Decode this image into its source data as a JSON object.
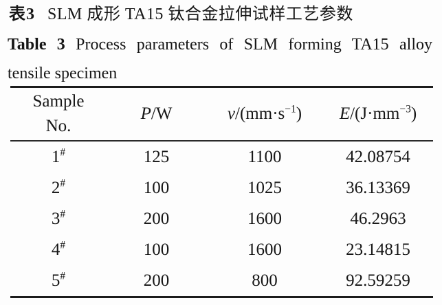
{
  "caption_zh": {
    "label": "表3",
    "text": "SLM 成形 TA15 钛合金拉伸试样工艺参数"
  },
  "caption_en": {
    "label": "Table 3",
    "line1": "Process parameters of SLM forming TA15 alloy",
    "line2": "tensile specimen"
  },
  "table": {
    "columns": {
      "sample": {
        "line1": "Sample",
        "line2": "No."
      },
      "power": {
        "sym": "P",
        "pre": "/",
        "unit": "W",
        "sup": "",
        "post": ""
      },
      "speed": {
        "sym": "v",
        "pre": "/(",
        "unit": "mm·s",
        "sup": "−1",
        "post": ")"
      },
      "energy": {
        "sym": "E",
        "pre": "/(",
        "unit": "J·mm",
        "sup": "−3",
        "post": ")"
      }
    },
    "rows": [
      {
        "no": "1",
        "mark": "#",
        "p": "125",
        "v": "1100",
        "e": "42.08754"
      },
      {
        "no": "2",
        "mark": "#",
        "p": "100",
        "v": "1025",
        "e": "36.13369"
      },
      {
        "no": "3",
        "mark": "#",
        "p": "200",
        "v": "1600",
        "e": "46.2963"
      },
      {
        "no": "4",
        "mark": "#",
        "p": "100",
        "v": "1600",
        "e": "23.14815"
      },
      {
        "no": "5",
        "mark": "#",
        "p": "200",
        "v": "800",
        "e": "92.59259"
      }
    ]
  },
  "colors": {
    "background": "#fdfdfd",
    "text": "#161616",
    "rule": "#1c1c1c"
  }
}
